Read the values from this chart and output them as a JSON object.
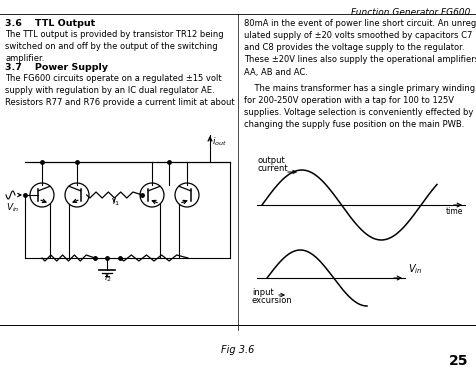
{
  "header_text": "Function Generator FG600",
  "page_number": "25",
  "caption": "Fig 3.6",
  "col1_heading1": "3.6    TTL Output",
  "col1_body1": "The TTL output is provided by transistor TR12 being\nswitched on and off by the output of the switching\namplifier.",
  "col1_heading2": "3.7    Power Supply",
  "col1_body2": "The FG600 circuits operate on a regulated ±15 volt\nsupply with regulation by an IC dual regulator AE.\nResistors R77 and R76 provide a current limit at about",
  "col2_body1": "80mA in the event of power line short circuit. An unreg-\nulated supply of ±20 volts smoothed by capacitors C7\nand C8 provides the voltage supply to the regulator.\nThese ±20V lines also supply the operational amplifiers\nAA, AB and AC.",
  "col2_body2": "    The mains transformer has a single primary winding\nfor 200-250V operation with a tap for 100 to 125V\nsupplies. Voltage selection is conveniently effected by\nchanging the supply fuse position on the main PWB.",
  "fig_width": 476,
  "fig_height": 375
}
